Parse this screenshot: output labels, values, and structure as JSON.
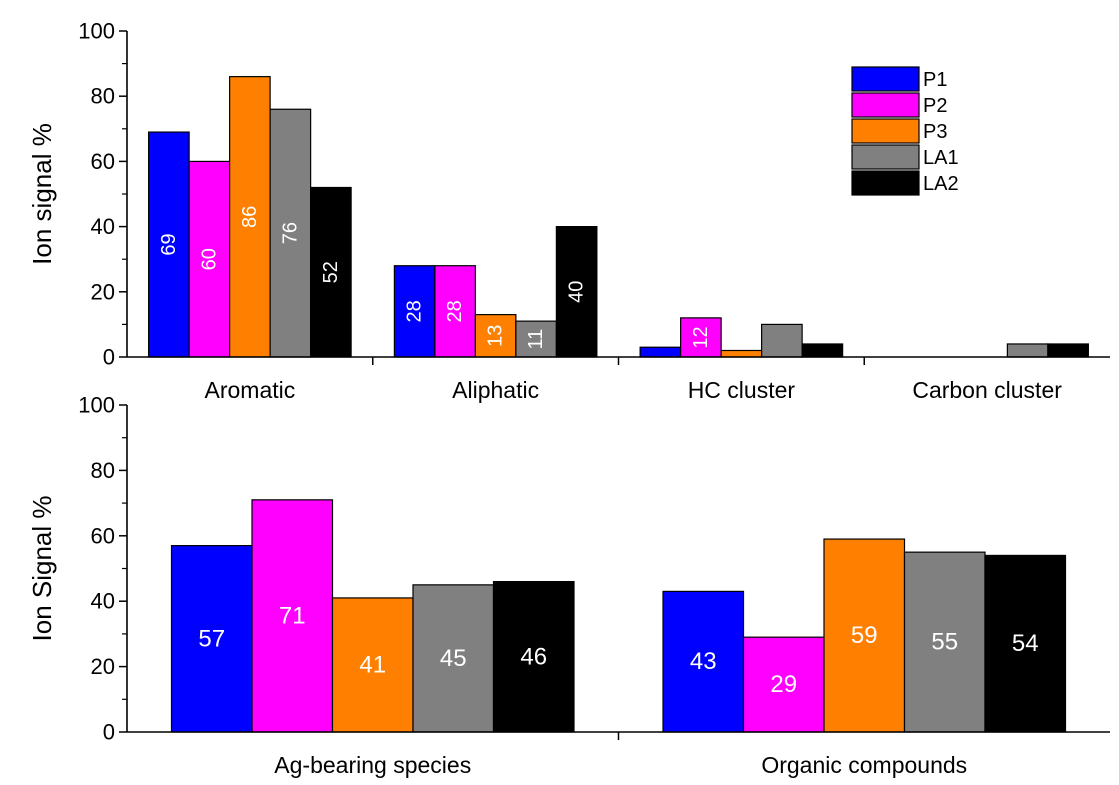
{
  "chart_data": [
    {
      "type": "bar",
      "ylabel": "Ion signal %",
      "xlabel": "",
      "ylim": [
        0,
        100
      ],
      "yticks": [
        0,
        20,
        40,
        60,
        80,
        100
      ],
      "categories": [
        "Aromatic",
        "Aliphatic",
        "HC cluster",
        "Carbon cluster"
      ],
      "legend": "top-right",
      "series": [
        {
          "name": "P1",
          "color": "#0000ff",
          "values": [
            69,
            28,
            3,
            0
          ],
          "labels": [
            "69",
            "28",
            "",
            ""
          ]
        },
        {
          "name": "P2",
          "color": "#ff00ff",
          "values": [
            60,
            28,
            12,
            0
          ],
          "labels": [
            "60",
            "28",
            "12",
            ""
          ]
        },
        {
          "name": "P3",
          "color": "#ff8000",
          "values": [
            86,
            13,
            2,
            0
          ],
          "labels": [
            "86",
            "13",
            "",
            ""
          ]
        },
        {
          "name": "LA1",
          "color": "#808080",
          "values": [
            76,
            11,
            10,
            4
          ],
          "labels": [
            "76",
            "11",
            "",
            ""
          ]
        },
        {
          "name": "LA2",
          "color": "#000000",
          "values": [
            52,
            40,
            4,
            4
          ],
          "labels": [
            "52",
            "40",
            "",
            ""
          ]
        }
      ]
    },
    {
      "type": "bar",
      "ylabel": "Ion Signal %",
      "xlabel": "",
      "ylim": [
        0,
        100
      ],
      "yticks": [
        0,
        20,
        40,
        60,
        80,
        100
      ],
      "categories": [
        "Ag-bearing species",
        "Organic compounds"
      ],
      "series": [
        {
          "name": "P1",
          "color": "#0000ff",
          "values": [
            57,
            43
          ],
          "labels": [
            "57",
            "43"
          ]
        },
        {
          "name": "P2",
          "color": "#ff00ff",
          "values": [
            71,
            29
          ],
          "labels": [
            "71",
            "29"
          ]
        },
        {
          "name": "P3",
          "color": "#ff8000",
          "values": [
            41,
            59
          ],
          "labels": [
            "41",
            "59"
          ]
        },
        {
          "name": "LA1",
          "color": "#808080",
          "values": [
            45,
            55
          ],
          "labels": [
            "45",
            "55"
          ]
        },
        {
          "name": "LA2",
          "color": "#000000",
          "values": [
            46,
            54
          ],
          "labels": [
            "46",
            "54"
          ]
        }
      ]
    }
  ]
}
